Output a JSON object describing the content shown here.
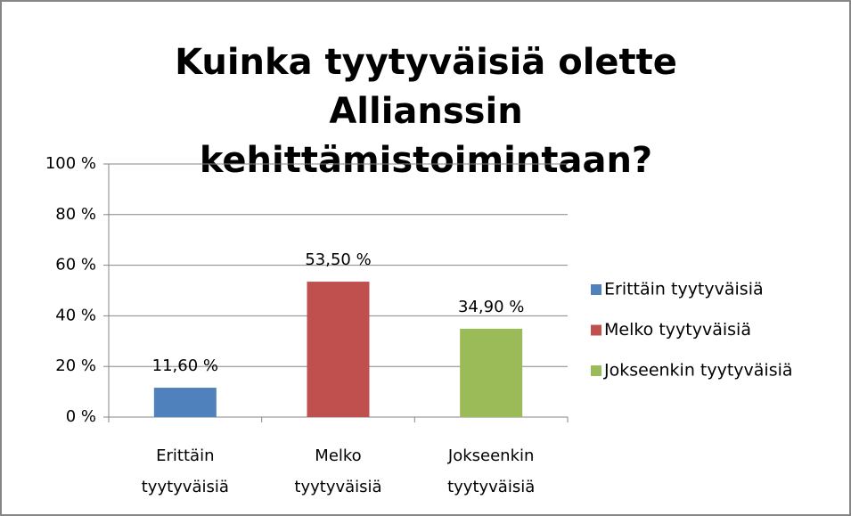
{
  "chart_data": {
    "type": "bar",
    "title": "Kuinka tyytyväisiä olette Allianssin kehittämistoimintaan?",
    "categories": [
      "Erittäin tyytyväisiä",
      "Melko tyytyväisiä",
      "Jokseenkin tyytyväisiä"
    ],
    "values": [
      11.6,
      53.5,
      34.9
    ],
    "value_labels": [
      "11,60 %",
      "53,50 %",
      "34,90 %"
    ],
    "colors": [
      "#4f81bd",
      "#c0504d",
      "#9bbb59"
    ],
    "ylim": [
      0,
      100
    ],
    "yticks": [
      {
        "value": 0,
        "label": "0 %"
      },
      {
        "value": 20,
        "label": "20 %"
      },
      {
        "value": 40,
        "label": "40 %"
      },
      {
        "value": 60,
        "label": "60 %"
      },
      {
        "value": 80,
        "label": "80 %"
      },
      {
        "value": 100,
        "label": "100 %"
      }
    ],
    "grid": true,
    "legend": "right"
  }
}
